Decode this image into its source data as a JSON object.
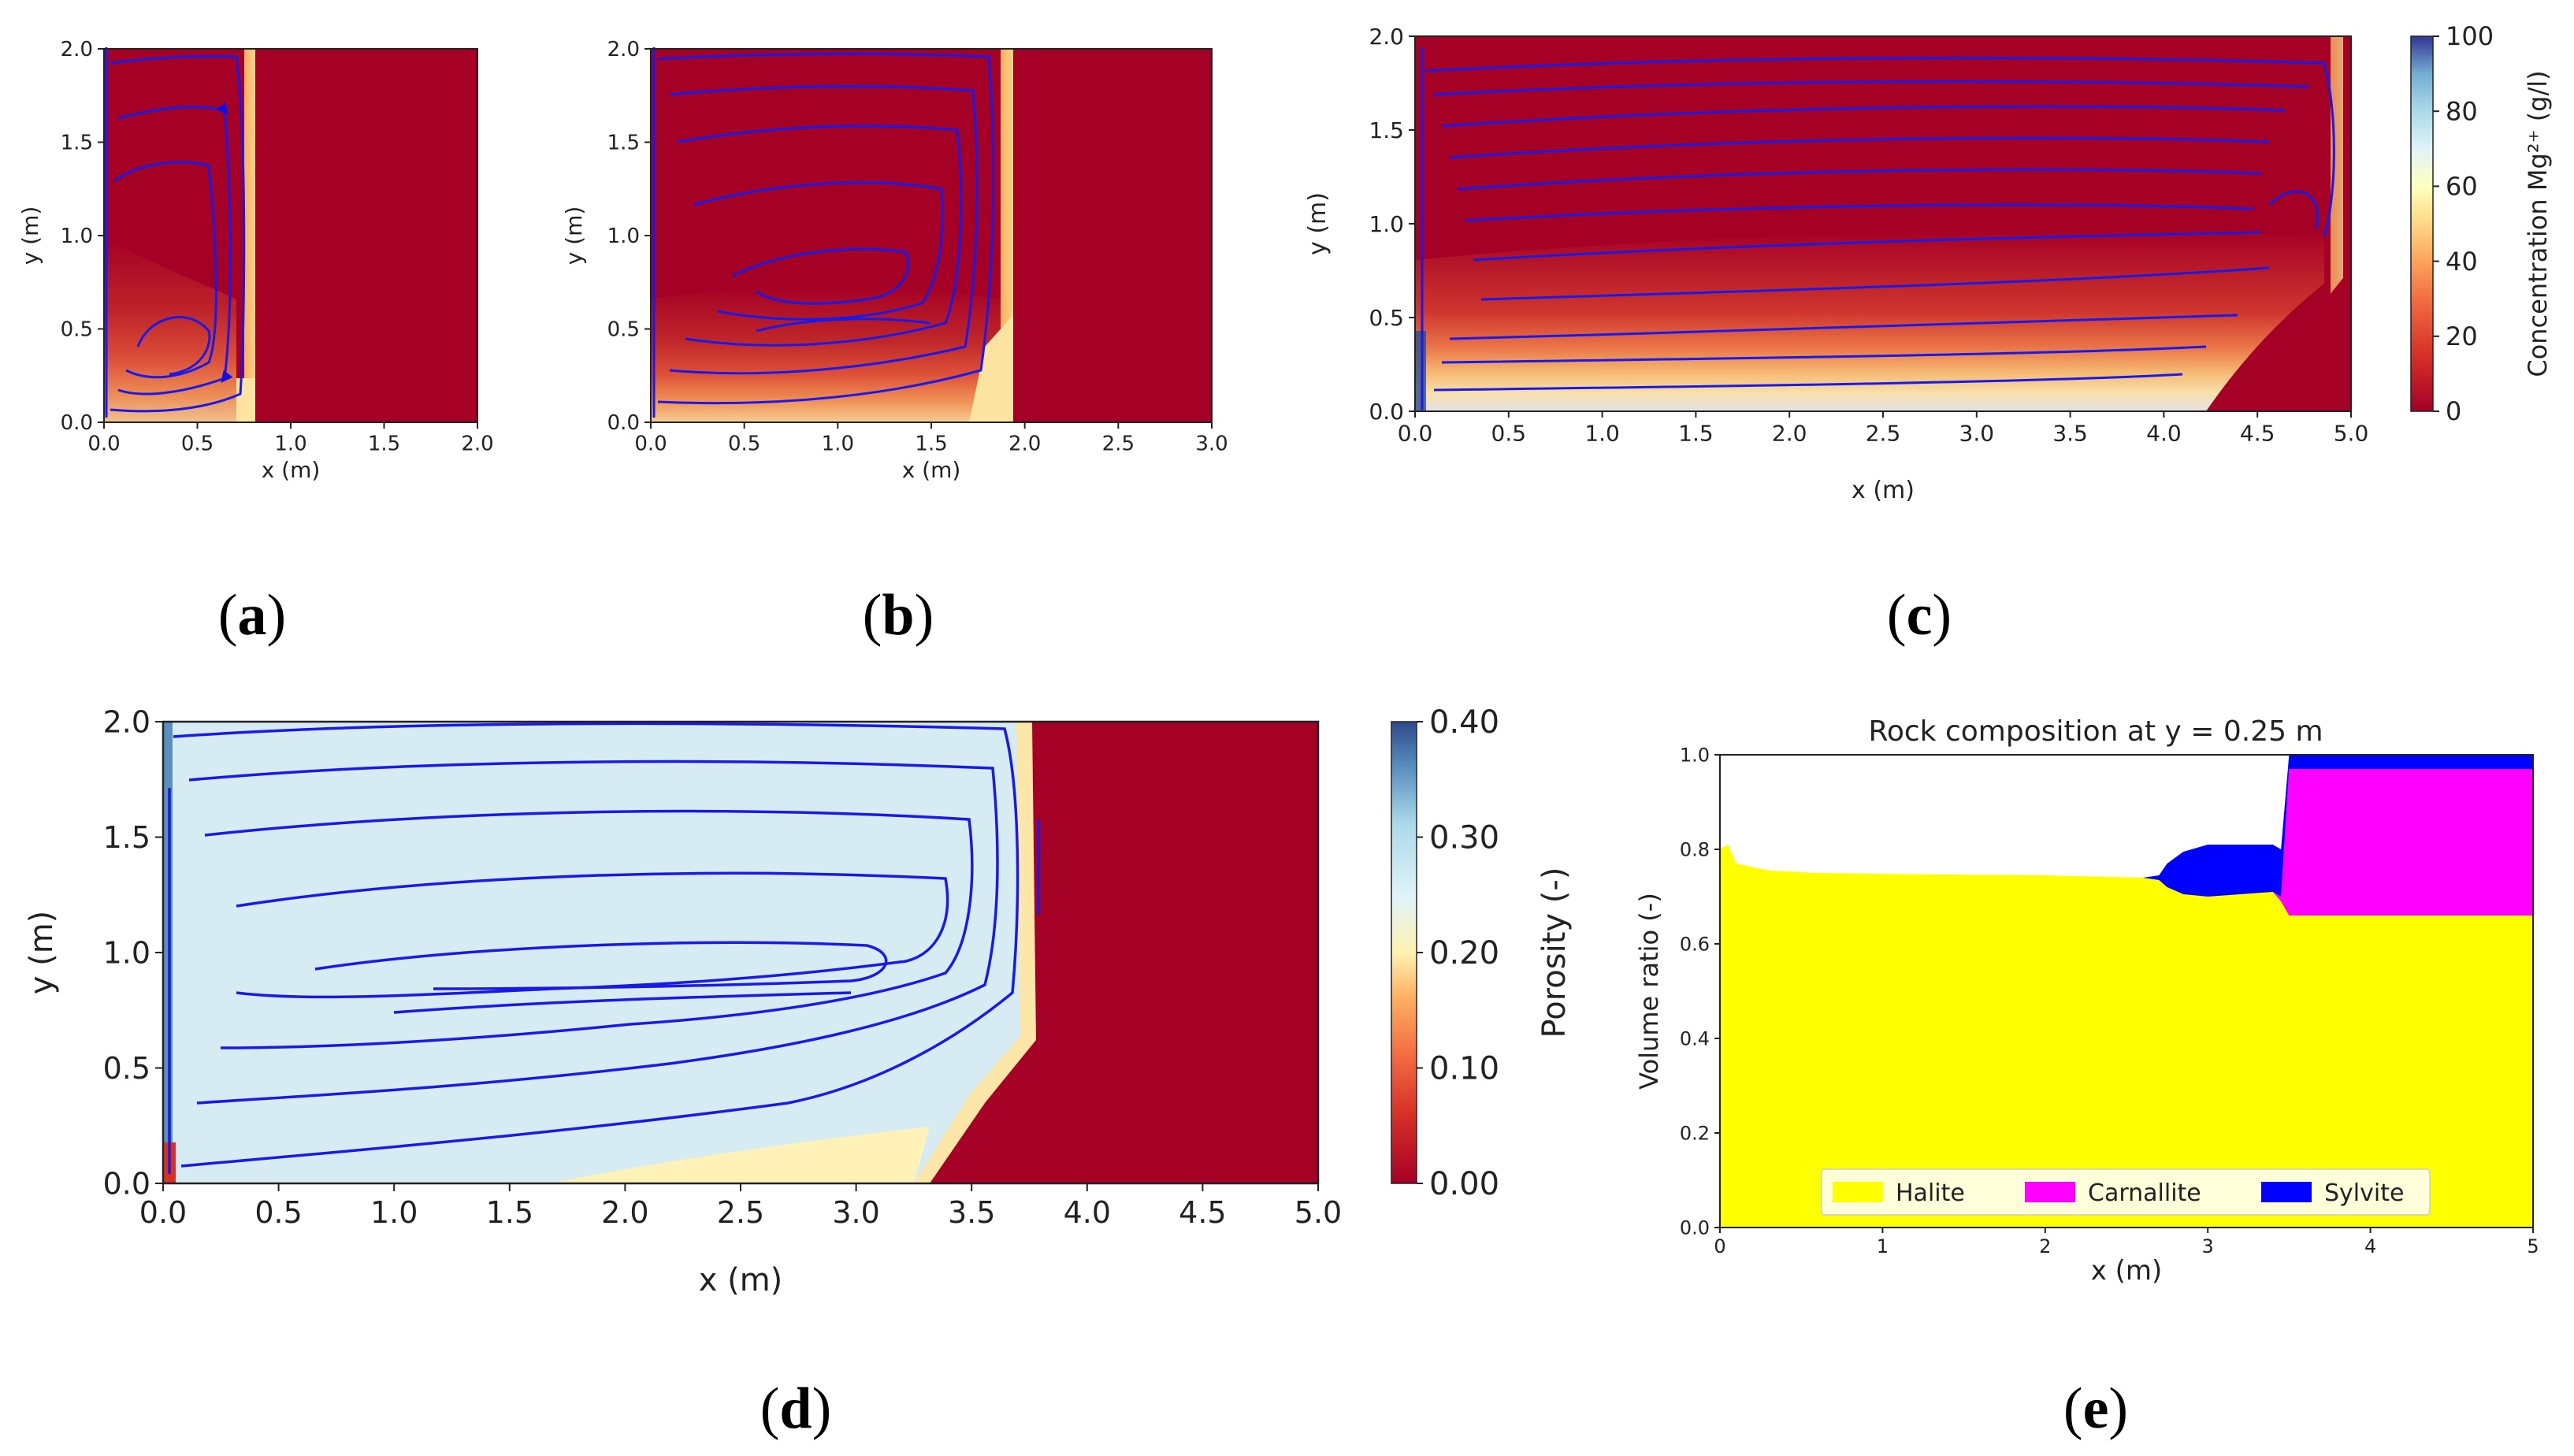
{
  "figure": {
    "subfigure_labels": [
      "a",
      "b",
      "c",
      "d",
      "e"
    ]
  },
  "chart_data": [
    {
      "id": "a",
      "type": "heatmap",
      "title": "",
      "xlabel": "x (m)",
      "ylabel": "y (m)",
      "xlim": [
        0,
        2.0
      ],
      "ylim": [
        0,
        2.0
      ],
      "xticks": [
        "0.0",
        "0.5",
        "1.0",
        "1.5",
        "2.0"
      ],
      "yticks": [
        "0.0",
        "0.5",
        "1.0",
        "1.5",
        "2.0"
      ],
      "dissolution_front_x": 0.77,
      "field": "Mg2+ concentration (shared colorbar of panel c)"
    },
    {
      "id": "b",
      "type": "heatmap",
      "title": "",
      "xlabel": "x (m)",
      "ylabel": "y (m)",
      "xlim": [
        0,
        3.0
      ],
      "ylim": [
        0,
        2.0
      ],
      "xticks": [
        "0.0",
        "0.5",
        "1.0",
        "1.5",
        "2.0",
        "2.5",
        "3.0"
      ],
      "yticks": [
        "0.0",
        "0.5",
        "1.0",
        "1.5",
        "2.0"
      ],
      "dissolution_front_x": 1.85,
      "field": "Mg2+ concentration (shared colorbar of panel c)"
    },
    {
      "id": "c",
      "type": "heatmap",
      "title": "",
      "xlabel": "x (m)",
      "ylabel": "y (m)",
      "xlim": [
        0,
        5.0
      ],
      "ylim": [
        0,
        2.0
      ],
      "xticks": [
        "0.0",
        "0.5",
        "1.0",
        "1.5",
        "2.0",
        "2.5",
        "3.0",
        "3.5",
        "4.0",
        "4.5",
        "5.0"
      ],
      "yticks": [
        "0.0",
        "0.5",
        "1.0",
        "1.5",
        "2.0"
      ],
      "dissolution_front_x": 4.9,
      "colorbar": {
        "label": "Concentration Mg²⁺ (g/l)",
        "range": [
          0,
          100
        ],
        "ticks": [
          "0",
          "20",
          "40",
          "60",
          "80",
          "100"
        ]
      }
    },
    {
      "id": "d",
      "type": "heatmap",
      "title": "",
      "xlabel": "x (m)",
      "ylabel": "y (m)",
      "xlim": [
        0,
        5.0
      ],
      "ylim": [
        0,
        2.0
      ],
      "xticks": [
        "0.0",
        "0.5",
        "1.0",
        "1.5",
        "2.0",
        "2.5",
        "3.0",
        "3.5",
        "4.0",
        "4.5",
        "5.0"
      ],
      "yticks": [
        "0.0",
        "0.5",
        "1.0",
        "1.5",
        "2.0"
      ],
      "dissolution_front_x": 3.75,
      "colorbar": {
        "label": "Porosity (-)",
        "range": [
          0,
          0.4
        ],
        "ticks": [
          "0.00",
          "0.10",
          "0.20",
          "0.30",
          "0.40"
        ]
      }
    },
    {
      "id": "e",
      "type": "area",
      "title": "Rock composition at y = 0.25 m",
      "xlabel": "x (m)",
      "ylabel": "Volume ratio (-)",
      "xlim": [
        0,
        5
      ],
      "ylim": [
        0,
        1.0
      ],
      "xticks": [
        "0",
        "1",
        "2",
        "3",
        "4",
        "5"
      ],
      "yticks": [
        "0.0",
        "0.2",
        "0.4",
        "0.6",
        "0.8",
        "1.0"
      ],
      "x": [
        0,
        0.05,
        0.1,
        0.3,
        0.6,
        1.0,
        2.0,
        2.6,
        2.7,
        2.75,
        2.85,
        3.0,
        3.4,
        3.45,
        3.5,
        4.0,
        5.0
      ],
      "series": [
        {
          "name": "Halite",
          "color": "#ffff00",
          "values": [
            0.8,
            0.81,
            0.77,
            0.755,
            0.75,
            0.748,
            0.745,
            0.74,
            0.735,
            0.72,
            0.705,
            0.7,
            0.71,
            0.69,
            0.66,
            0.66,
            0.66
          ]
        },
        {
          "name": "Carnallite",
          "color": "#ff00ff",
          "values": [
            0,
            0,
            0,
            0,
            0,
            0,
            0,
            0,
            0,
            0,
            0,
            0,
            0,
            0.01,
            0.31,
            0.31,
            0.31
          ]
        },
        {
          "name": "Sylvite",
          "color": "#0000ff",
          "values": [
            0,
            0,
            0,
            0,
            0,
            0,
            0,
            0,
            0.01,
            0.05,
            0.09,
            0.11,
            0.1,
            0.1,
            0.03,
            0.03,
            0.03
          ]
        }
      ],
      "legend": {
        "entries": [
          "Halite",
          "Carnallite",
          "Sylvite"
        ],
        "position": "bottom-center"
      }
    }
  ]
}
